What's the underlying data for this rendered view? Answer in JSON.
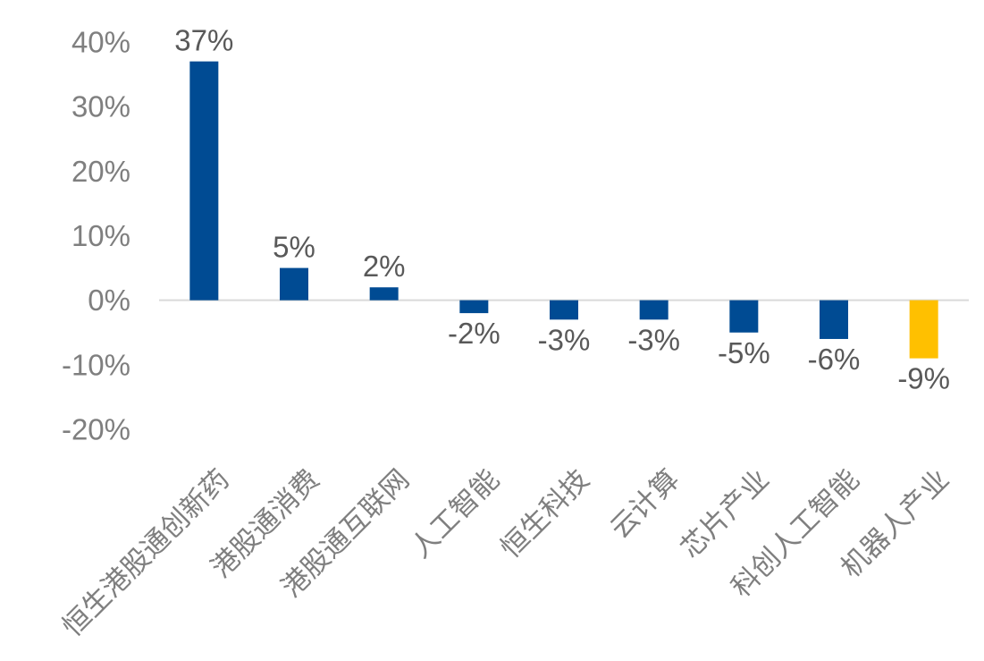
{
  "chart_data": {
    "type": "bar",
    "categories": [
      "恒生港股通创新药",
      "港股通消费",
      "港股通互联网",
      "人工智能",
      "恒生科技",
      "云计算",
      "芯片产业",
      "科创人工智能",
      "机器人产业"
    ],
    "values": [
      37,
      5,
      2,
      -2,
      -3,
      -3,
      -5,
      -6,
      -9
    ],
    "data_labels": [
      "37%",
      "5%",
      "2%",
      "-2%",
      "-3%",
      "-3%",
      "-5%",
      "-6%",
      "-9%"
    ],
    "colors": [
      "#004b93",
      "#004b93",
      "#004b93",
      "#004b93",
      "#004b93",
      "#004b93",
      "#004b93",
      "#004b93",
      "#ffc000"
    ],
    "yticks": [
      40,
      30,
      20,
      10,
      0,
      -10,
      -20
    ],
    "ytick_labels": [
      "40%",
      "30%",
      "20%",
      "10%",
      "0%",
      "-10%",
      "-20%"
    ],
    "ylim": [
      -20,
      40
    ],
    "title": "",
    "xlabel": "",
    "ylabel": "",
    "grid": false,
    "legend": "none"
  }
}
